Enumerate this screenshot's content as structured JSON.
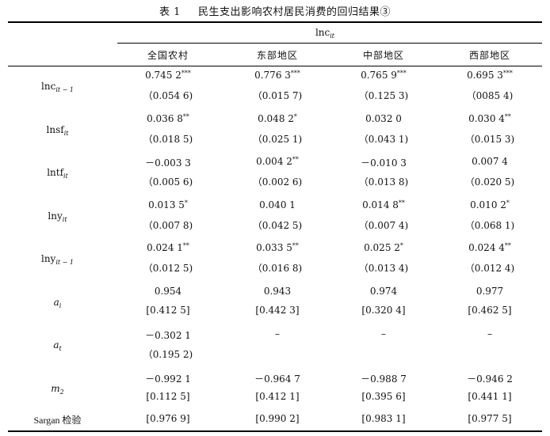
{
  "caption": {
    "number": "表 1",
    "title": "民生支出影响农村居民消费的回归结果③"
  },
  "header": {
    "dependent": {
      "base": "lnc",
      "sub": "it"
    },
    "columns": [
      "全国农村",
      "东部地区",
      "中部地区",
      "西部地区"
    ]
  },
  "rows": [
    {
      "label": {
        "pre": "lnc",
        "sub": "it − 1"
      },
      "coef": [
        {
          "v": "0.745 2",
          "s": "***"
        },
        {
          "v": "0.776 3",
          "s": "***"
        },
        {
          "v": "0.765 9",
          "s": "***"
        },
        {
          "v": "0.695 3",
          "s": "***"
        }
      ],
      "se": [
        "（0.054 6)",
        "（0.015 7)",
        "（0.125 3)",
        "（0085 4)"
      ]
    },
    {
      "label": {
        "pre": "lnsf",
        "sub": "it"
      },
      "coef": [
        {
          "v": "0.036 8",
          "s": "**"
        },
        {
          "v": "0.048 2",
          "s": "*"
        },
        {
          "v": "0.032 0",
          "s": ""
        },
        {
          "v": "0.030 4",
          "s": "**"
        }
      ],
      "se": [
        "（0.018 5)",
        "（0.025 1)",
        "（0.043 1)",
        "（0.015 3)"
      ]
    },
    {
      "label": {
        "pre": "lntf",
        "sub": "it"
      },
      "coef": [
        {
          "v": "－0.003 3",
          "s": ""
        },
        {
          "v": "0.004 2",
          "s": "**"
        },
        {
          "v": "－0.010 3",
          "s": ""
        },
        {
          "v": "0.007 4",
          "s": ""
        }
      ],
      "se": [
        "（0.005 6)",
        "（0.002 6)",
        "（0.013 8)",
        "（0.020 5)"
      ]
    },
    {
      "label": {
        "pre": "lny",
        "sub": "it"
      },
      "coef": [
        {
          "v": "0.013 5",
          "s": "*"
        },
        {
          "v": "0.040 1",
          "s": ""
        },
        {
          "v": "0.014 8",
          "s": "**"
        },
        {
          "v": "0.010 2",
          "s": "*"
        }
      ],
      "se": [
        "（0.007 8)",
        "（0.042 5)",
        "（0.007 4)",
        "（0.068 1)"
      ]
    },
    {
      "label": {
        "pre": "lny",
        "sub": "it − 1"
      },
      "coef": [
        {
          "v": "0.024 1",
          "s": "**"
        },
        {
          "v": "0.033 5",
          "s": "**"
        },
        {
          "v": "0.025 2",
          "s": "*"
        },
        {
          "v": "0.024 4",
          "s": "**"
        }
      ],
      "se": [
        "（0.012 5)",
        "（0.016 8)",
        "（0.013 4)",
        "（0.012 4)"
      ]
    },
    {
      "label": {
        "pre": "a",
        "sub": "i",
        "italic": true
      },
      "coef": [
        {
          "v": "0.954",
          "s": ""
        },
        {
          "v": "0.943",
          "s": ""
        },
        {
          "v": "0.974",
          "s": ""
        },
        {
          "v": "0.977",
          "s": ""
        }
      ],
      "se": [
        "[0.412 5]",
        "[0.442 3]",
        "[0.320 4]",
        "[0.462 5]"
      ]
    },
    {
      "label": {
        "pre": "a",
        "sub": "t",
        "italic": true
      },
      "coef": [
        {
          "v": "－0.302 1",
          "s": ""
        },
        {
          "v": "–",
          "s": ""
        },
        {
          "v": "–",
          "s": ""
        },
        {
          "v": "–",
          "s": ""
        }
      ],
      "se": [
        "（0.195 2)",
        "",
        "",
        ""
      ]
    },
    {
      "label": {
        "pre": "m",
        "sub": "2",
        "italic": true
      },
      "coef": [
        {
          "v": "－0.992 1",
          "s": ""
        },
        {
          "v": "－0.964 7",
          "s": ""
        },
        {
          "v": "－0.988 7",
          "s": ""
        },
        {
          "v": "－0.946 2",
          "s": ""
        }
      ],
      "se": [
        "[0.112 5]",
        "[0.412 1]",
        "[0.395 6]",
        "[0.441 1]"
      ]
    }
  ],
  "sargan": {
    "label": "Sargan 检验",
    "values": [
      "[0.976 9]",
      "[0.990 2]",
      "[0.983 1]",
      "[0.977 5]"
    ]
  }
}
